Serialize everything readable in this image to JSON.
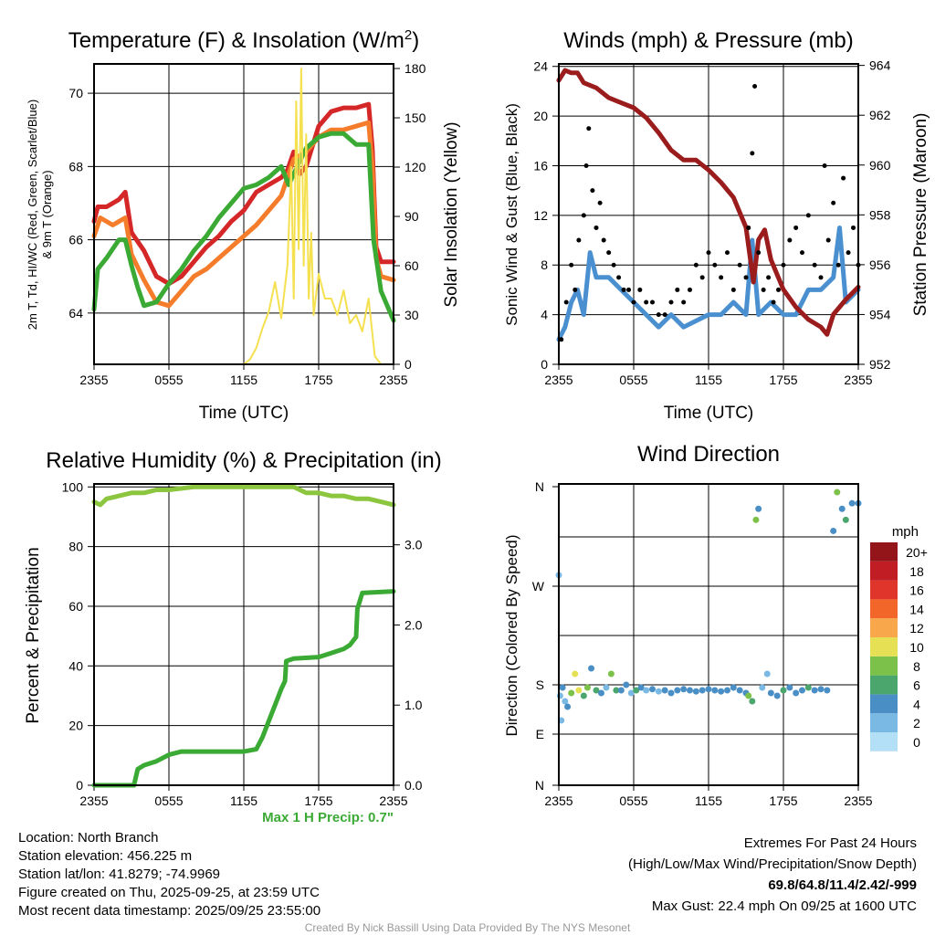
{
  "chart_data": [
    {
      "type": "line",
      "title": "Temperature (F) & Insolation (W/m",
      "title_sup": "2",
      "title_end": ")",
      "xlabel": "Time (UTC)",
      "ylabel_left": "2m T, Td, HI/WC (Red, Green, Scarlet/Blue)",
      "ylabel_left2": "& 9m T (Orange)",
      "ylabel_right": "Solar Insolation (Yellow)",
      "x_ticks": [
        "2355",
        "0555",
        "1155",
        "1755",
        "2355"
      ],
      "ylim_left": [
        62.6,
        70.8
      ],
      "y_ticks_left": [
        "64",
        "66",
        "68",
        "70"
      ],
      "ylim_right": [
        0,
        182.8
      ],
      "y_ticks_right": [
        "0",
        "30",
        "60",
        "90",
        "120",
        "150",
        "180"
      ],
      "series": [
        {
          "name": "2m T",
          "color": "#d62728",
          "axis": "left",
          "x": [
            0,
            0.3,
            1,
            2,
            2.5,
            3,
            4,
            5,
            6,
            7,
            8,
            9,
            10,
            11,
            12,
            13,
            14,
            15,
            15.5,
            16,
            16.5,
            17,
            18,
            19,
            20,
            21,
            22,
            22.3,
            22.6,
            23,
            24
          ],
          "y": [
            66.5,
            66.9,
            66.9,
            67.1,
            67.3,
            66.2,
            65.7,
            65.0,
            64.8,
            65.0,
            65.4,
            65.8,
            66.1,
            66.5,
            66.8,
            67.3,
            67.5,
            67.7,
            67.9,
            68.4,
            67.8,
            68.0,
            69.1,
            69.5,
            69.6,
            69.6,
            69.7,
            68.5,
            65.8,
            65.4,
            65.4
          ]
        },
        {
          "name": "9m T",
          "color": "#f57c2a",
          "axis": "left",
          "x": [
            0,
            0.5,
            1.5,
            2.5,
            3,
            4,
            5,
            6,
            7,
            8,
            9,
            10,
            11,
            12,
            13,
            14,
            15,
            16,
            17,
            18,
            19,
            20,
            21,
            22,
            22.3,
            22.6,
            23,
            24
          ],
          "y": [
            66.1,
            66.6,
            66.4,
            66.6,
            65.6,
            64.9,
            64.3,
            64.2,
            64.6,
            65.0,
            65.2,
            65.5,
            65.8,
            66.1,
            66.4,
            66.8,
            67.2,
            68.2,
            68.4,
            68.8,
            69.0,
            69.0,
            69.1,
            69.2,
            68.0,
            65.5,
            65.0,
            64.9
          ]
        },
        {
          "name": "2m Td",
          "color": "#3aaa35",
          "axis": "left",
          "x": [
            0,
            0.3,
            1,
            2,
            2.5,
            3,
            3.5,
            4,
            5,
            6,
            7,
            8,
            9,
            10,
            11,
            12,
            13,
            14,
            15,
            15.6,
            16,
            17,
            18,
            19,
            20,
            21,
            22,
            22.4,
            23,
            24
          ],
          "y": [
            64.1,
            65.2,
            65.5,
            66.0,
            66.0,
            65.3,
            64.7,
            64.2,
            64.3,
            64.8,
            65.2,
            65.7,
            66.1,
            66.6,
            67.0,
            67.4,
            67.5,
            67.7,
            68.0,
            67.5,
            67.8,
            68.5,
            68.8,
            68.9,
            68.9,
            68.6,
            68.6,
            66.0,
            64.6,
            63.8
          ]
        },
        {
          "name": "Solar Insolation",
          "color": "#f5e050",
          "axis": "right",
          "x": [
            0,
            12,
            12.5,
            13,
            13.5,
            14,
            14.5,
            15,
            15.5,
            15.8,
            16,
            16.2,
            16.4,
            16.6,
            16.8,
            17,
            17.2,
            17.4,
            17.6,
            18,
            18.5,
            19,
            19.5,
            20,
            20.5,
            21,
            21.5,
            22,
            22.5,
            23,
            24
          ],
          "y": [
            0,
            0,
            3,
            10,
            22,
            32,
            50,
            28,
            60,
            120,
            40,
            160,
            70,
            180,
            60,
            140,
            40,
            80,
            30,
            55,
            40,
            40,
            30,
            45,
            25,
            30,
            20,
            40,
            5,
            0,
            0
          ]
        }
      ]
    },
    {
      "type": "line",
      "title": "Winds (mph) & Pressure (mb)",
      "xlabel": "Time (UTC)",
      "ylabel_left": "Sonic Wind & Gust (Blue, Black)",
      "ylabel_right": "Station Pressure (Maroon)",
      "x_ticks": [
        "2355",
        "0555",
        "1155",
        "1755",
        "2355"
      ],
      "ylim_left": [
        0,
        24.2
      ],
      "y_ticks_left": [
        "0",
        "4",
        "8",
        "12",
        "16",
        "20",
        "24"
      ],
      "ylim_right": [
        952,
        964.06
      ],
      "y_ticks_right": [
        "952",
        "954",
        "956",
        "958",
        "960",
        "962",
        "964"
      ],
      "series": [
        {
          "name": "Sonic Wind",
          "color": "#4a90d0",
          "axis": "left",
          "x": [
            0,
            0.5,
            1,
            1.5,
            2,
            2.5,
            3,
            4,
            5,
            6,
            7,
            8,
            9,
            10,
            11,
            12,
            13,
            14,
            15,
            15.5,
            16,
            17,
            18,
            19,
            20,
            21,
            22,
            22.5,
            23,
            24
          ],
          "y": [
            2,
            3,
            5,
            6,
            4,
            9,
            7,
            7,
            6,
            5,
            4,
            3,
            4,
            3,
            3.5,
            4,
            4,
            5,
            4,
            10,
            4,
            5,
            4,
            4,
            6,
            6,
            7,
            11,
            5,
            6
          ]
        },
        {
          "name": "Pressure",
          "color": "#9b1c1c",
          "axis": "right",
          "x": [
            0,
            0.5,
            1,
            1.5,
            2,
            3,
            4,
            5,
            6,
            7,
            8,
            9,
            10,
            11,
            12,
            13,
            14,
            15,
            15.6,
            16,
            16.5,
            17,
            18,
            19,
            20,
            21,
            21.5,
            22,
            23,
            24
          ],
          "y": [
            963.4,
            963.8,
            963.7,
            963.7,
            963.3,
            963.1,
            962.7,
            962.5,
            962.3,
            961.9,
            961.3,
            960.6,
            960.2,
            960.2,
            959.8,
            959.3,
            958.7,
            957.5,
            955.3,
            957.0,
            957.4,
            956.2,
            955.0,
            954.3,
            953.8,
            953.5,
            953.2,
            954.0,
            954.6,
            955.1
          ]
        },
        {
          "name": "Gust",
          "color": "#000000",
          "axis": "left",
          "type": "scatter",
          "x": [
            0.2,
            0.6,
            1,
            1.3,
            1.6,
            2,
            2.2,
            2.4,
            2.7,
            3,
            3.3,
            3.6,
            4,
            4.4,
            4.8,
            5.2,
            5.6,
            6,
            6.5,
            7,
            7.5,
            8,
            8.5,
            9,
            9.5,
            10,
            10.5,
            11,
            11.5,
            12,
            12.5,
            13,
            13.5,
            14,
            14.5,
            15,
            15.2,
            15.5,
            15.7,
            16,
            16.4,
            16.8,
            17.2,
            17.6,
            18,
            18.5,
            19,
            19.5,
            20,
            20.5,
            21,
            21.3,
            21.6,
            22,
            22.4,
            22.8,
            23.2,
            23.6,
            24
          ],
          "y": [
            2,
            5,
            8,
            6,
            10,
            12,
            16,
            19,
            14,
            11,
            13,
            10,
            9,
            8,
            7,
            6,
            6,
            5,
            6,
            5,
            5,
            4,
            4,
            5,
            6,
            5,
            6,
            8,
            7,
            9,
            8,
            7,
            9,
            6,
            8,
            7,
            11,
            17,
            22.4,
            9,
            6,
            7,
            5,
            6,
            8,
            10,
            11,
            9,
            12,
            8,
            7,
            16,
            10,
            13,
            8,
            15,
            9,
            11,
            8
          ]
        }
      ]
    },
    {
      "type": "line",
      "title": "Relative Humidity (%) & Precipitation (in)",
      "ylabel_left": "Percent & Precipitation",
      "x_ticks": [
        "2355",
        "0555",
        "1155",
        "1755",
        "2355"
      ],
      "ylim_left": [
        0,
        101
      ],
      "y_ticks_left": [
        "0",
        "20",
        "40",
        "60",
        "80",
        "100"
      ],
      "ylim_right": [
        0,
        3.76
      ],
      "y_ticks_right": [
        "0.0",
        "1.0",
        "2.0",
        "3.0"
      ],
      "annotation": "Max 1 H Precip: 0.7\"",
      "series": [
        {
          "name": "Relative Humidity",
          "color": "#8cc63f",
          "axis": "left",
          "x": [
            0,
            0.5,
            1,
            2,
            3,
            4,
            5,
            6,
            7,
            8,
            12,
            16,
            17,
            18,
            19,
            20,
            21,
            22,
            23,
            24
          ],
          "y": [
            95,
            94,
            96,
            97,
            98,
            98,
            99,
            99,
            99.5,
            100,
            100,
            100,
            98,
            98,
            97,
            97,
            96,
            96,
            95,
            94
          ]
        },
        {
          "name": "Precipitation",
          "color": "#3aaa35",
          "axis": "right",
          "x": [
            0,
            3.2,
            3.5,
            4,
            5,
            6,
            7,
            8,
            12,
            13,
            13.5,
            14,
            14.5,
            15,
            15.3,
            15.4,
            16,
            18,
            19,
            20,
            20.5,
            21,
            21.1,
            21.5,
            24
          ],
          "y": [
            0,
            0,
            0.2,
            0.25,
            0.3,
            0.38,
            0.42,
            0.42,
            0.42,
            0.45,
            0.6,
            0.8,
            1.0,
            1.2,
            1.3,
            1.55,
            1.58,
            1.6,
            1.65,
            1.7,
            1.75,
            1.85,
            2.2,
            2.4,
            2.42
          ]
        }
      ]
    },
    {
      "type": "scatter",
      "title": "Wind Direction",
      "ylabel_left": "Direction (Colored By Speed)",
      "x_ticks": [
        "2355",
        "0555",
        "1155",
        "1755",
        "2355"
      ],
      "y_ticks_left": [
        "N",
        "E",
        "S",
        "W",
        "N"
      ],
      "legend_title": "mph",
      "legend": [
        {
          "label": "0",
          "color": "#b3e0f7"
        },
        {
          "label": "2",
          "color": "#7ab9e3"
        },
        {
          "label": "4",
          "color": "#4a8ec6"
        },
        {
          "label": "6",
          "color": "#4aa66c"
        },
        {
          "label": "8",
          "color": "#7cc24a"
        },
        {
          "label": "10",
          "color": "#e6e055"
        },
        {
          "label": "12",
          "color": "#f8a84a"
        },
        {
          "label": "14",
          "color": "#f2662a"
        },
        {
          "label": "16",
          "color": "#e0352a"
        },
        {
          "label": "18",
          "color": "#c11d24"
        },
        {
          "label": "20+",
          "color": "#93151a"
        }
      ],
      "points": {
        "x": [
          0,
          0.1,
          0.2,
          0.3,
          0.5,
          0.7,
          1,
          1.3,
          1.6,
          2,
          2.3,
          2.6,
          3,
          3.4,
          3.8,
          4.2,
          4.6,
          5,
          5.4,
          5.8,
          6.2,
          6.6,
          7,
          7.5,
          8,
          8.5,
          9,
          9.5,
          10,
          10.5,
          11,
          11.5,
          12,
          12.5,
          13,
          13.5,
          14,
          14.5,
          15,
          15.2,
          15.5,
          15.8,
          16,
          16.3,
          16.7,
          17,
          17.5,
          18,
          18.5,
          19,
          19.5,
          20,
          20.5,
          21,
          21.5,
          22,
          22.3,
          22.7,
          23,
          23.5,
          24
        ],
        "dir": [
          280,
          160,
          115,
          175,
          150,
          140,
          165,
          190,
          170,
          160,
          175,
          195,
          170,
          165,
          175,
          190,
          170,
          170,
          180,
          165,
          170,
          175,
          170,
          172,
          168,
          170,
          165,
          170,
          172,
          170,
          168,
          170,
          172,
          170,
          168,
          170,
          175,
          170,
          165,
          160,
          150,
          330,
          340,
          175,
          190,
          165,
          160,
          170,
          175,
          165,
          170,
          175,
          170,
          172,
          170,
          320,
          355,
          340,
          330,
          345,
          345
        ],
        "speed": [
          1,
          1,
          2,
          3,
          2,
          4,
          8,
          9,
          10,
          6,
          7,
          3,
          5,
          3,
          2,
          8,
          6,
          4,
          3,
          2,
          6,
          3,
          2,
          3,
          2,
          4,
          3,
          4,
          4,
          3,
          4,
          4,
          3,
          4,
          4,
          3,
          3,
          4,
          4,
          8,
          6,
          8,
          4,
          2,
          2,
          3,
          3,
          6,
          3,
          3,
          4,
          6,
          3,
          4,
          3,
          4,
          8,
          4,
          6,
          4,
          3
        ]
      }
    }
  ],
  "info": {
    "location": "Location: North Branch",
    "elevation": "Station elevation: 456.225 m",
    "latlon": "Station lat/lon: 41.8279; -74.9969",
    "created": "Figure created on Thu, 2025-09-25, at 23:59 UTC",
    "recent": "Most recent data timestamp: 2025/09/25 23:55:00",
    "extremes_title": "Extremes For Past 24 Hours",
    "extremes_sub": "(High/Low/Max Wind/Precipitation/Snow Depth)",
    "extremes_values": "69.8/64.8/11.4/2.42/-999",
    "max_gust": "Max Gust: 22.4 mph On 09/25 at 1600 UTC",
    "credit": "Created By Nick Bassill Using Data Provided By The NYS Mesonet"
  }
}
